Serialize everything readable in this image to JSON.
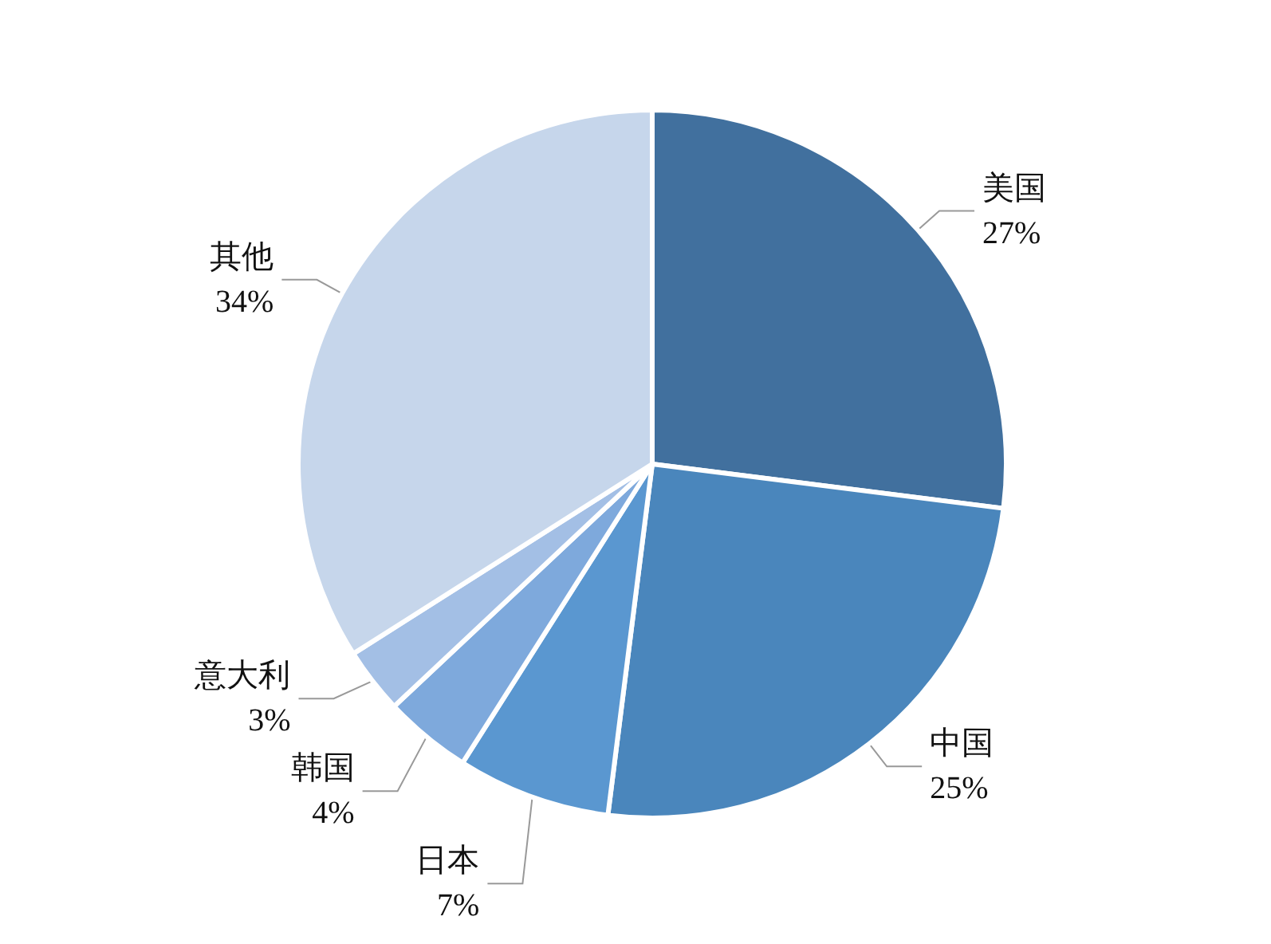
{
  "chart_data": {
    "type": "pie",
    "categories": [
      "美国",
      "中国",
      "日本",
      "韩国",
      "意大利",
      "其他"
    ],
    "values": [
      27,
      25,
      7,
      4,
      3,
      34
    ],
    "value_labels": [
      "27%",
      "25%",
      "7%",
      "4%",
      "3%",
      "34%"
    ],
    "colors": [
      "#41709e",
      "#4a86bc",
      "#5a97d0",
      "#7ea9dc",
      "#a3bfe5",
      "#c6d6eb"
    ],
    "legend": false
  }
}
